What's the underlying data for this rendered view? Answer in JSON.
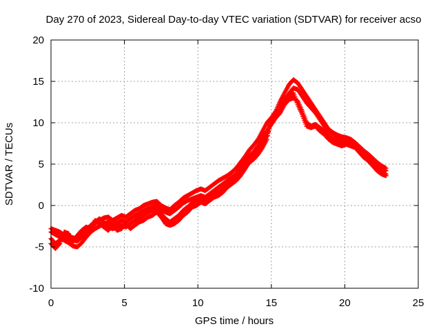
{
  "chart_data": {
    "type": "scatter",
    "title": "Day 270 of 2023, Sidereal Day-to-day VTEC variation (SDTVAR) for receiver acso",
    "xlabel": "GPS time / hours",
    "ylabel": "SDTVAR / TECUs",
    "xlim": [
      0,
      25
    ],
    "ylim": [
      -10,
      20
    ],
    "xticks": [
      0,
      5,
      10,
      15,
      20,
      25
    ],
    "yticks": [
      -10,
      -5,
      0,
      5,
      10,
      15,
      20
    ],
    "grid": true,
    "marker": "plus",
    "series": [
      {
        "name": "SDTVAR",
        "color": "#ff0000",
        "tracks": [
          {
            "x": [
              0,
              0.3,
              0.6,
              0.9,
              1.2,
              1.5,
              1.8,
              2.1,
              2.4,
              2.7,
              3.0,
              3.3,
              3.6,
              3.9,
              4.2,
              4.5,
              4.8,
              5.1,
              5.4,
              5.7,
              6.0,
              6.3,
              6.6,
              6.9,
              7.2,
              7.5,
              7.8,
              8.1,
              8.4,
              8.7,
              9.0,
              9.3,
              9.6,
              9.9,
              10.2,
              10.5,
              10.8,
              11.1,
              11.4,
              11.7,
              12.0,
              12.3,
              12.6,
              12.9,
              13.2,
              13.5,
              13.8,
              14.1,
              14.4,
              14.7,
              15.0,
              15.3,
              15.6,
              15.9,
              16.2,
              16.5,
              16.8,
              17.1,
              17.4,
              17.7,
              18.0,
              18.3,
              18.6,
              18.9,
              19.2,
              19.5,
              19.8,
              20.1,
              20.4,
              20.7,
              21.0,
              21.3,
              21.6,
              21.9,
              22.2,
              22.5,
              22.8
            ],
            "y": [
              -3.2,
              -3.5,
              -3.8,
              -4.2,
              -4.5,
              -4.9,
              -5.0,
              -4.5,
              -3.8,
              -3.2,
              -2.8,
              -2.5,
              -2.2,
              -2.0,
              -2.3,
              -2.1,
              -1.8,
              -2.0,
              -1.6,
              -1.2,
              -1.0,
              -0.6,
              -0.4,
              -0.2,
              0.0,
              -0.5,
              -0.8,
              -1.0,
              -0.6,
              -0.2,
              0.3,
              0.6,
              0.8,
              1.0,
              1.2,
              1.0,
              1.4,
              1.8,
              2.2,
              2.6,
              3.0,
              3.4,
              3.8,
              4.5,
              5.2,
              6.0,
              6.5,
              7.2,
              8.2,
              9.0,
              9.8,
              10.6,
              11.8,
              12.8,
              13.5,
              14.2,
              14.0,
              13.2,
              12.4,
              11.8,
              11.2,
              10.4,
              9.6,
              9.0,
              8.6,
              8.3,
              8.1,
              8.0,
              7.8,
              7.3,
              6.8,
              6.4,
              6.0,
              5.5,
              5.0,
              4.6,
              4.2
            ]
          },
          {
            "x": [
              0,
              0.3,
              0.6,
              0.9,
              1.2,
              1.5,
              1.8,
              2.1,
              2.4,
              2.7,
              3.0,
              3.3,
              3.6,
              3.9,
              4.2,
              4.5,
              4.8,
              5.1,
              5.4,
              5.7,
              6.0,
              6.3,
              6.6,
              6.9,
              7.2,
              7.5,
              7.8,
              8.1,
              8.4,
              8.7,
              9.0,
              9.3,
              9.6,
              9.9,
              10.2,
              10.5,
              10.8,
              11.1,
              11.4,
              11.7,
              12.0,
              12.3,
              12.6,
              12.9,
              13.2,
              13.5,
              13.8,
              14.1,
              14.4,
              14.7,
              15.0,
              15.3,
              15.6,
              15.9,
              16.2,
              16.5,
              16.8,
              17.1,
              17.4,
              17.7,
              18.0,
              18.3,
              18.6,
              18.9,
              19.2,
              19.5,
              19.8,
              20.1,
              20.4,
              20.7,
              21.0,
              21.3,
              21.6,
              21.9,
              22.2,
              22.5,
              22.8
            ],
            "y": [
              -2.8,
              -3.0,
              -3.2,
              -3.6,
              -4.0,
              -4.2,
              -4.3,
              -3.8,
              -3.2,
              -2.6,
              -2.2,
              -1.8,
              -1.5,
              -1.4,
              -1.8,
              -1.5,
              -1.2,
              -1.4,
              -1.0,
              -0.6,
              -0.4,
              0.0,
              0.2,
              0.4,
              0.5,
              0.0,
              -0.3,
              -0.5,
              0.0,
              0.4,
              0.9,
              1.2,
              1.5,
              1.8,
              2.0,
              1.8,
              2.2,
              2.6,
              3.0,
              3.3,
              3.6,
              4.0,
              4.5,
              5.2,
              5.9,
              6.7,
              7.3,
              8.0,
              9.0,
              10.0,
              10.6,
              11.4,
              12.6,
              13.6,
              14.6,
              15.2,
              14.8,
              14.0,
              13.2,
              12.4,
              11.6,
              10.8,
              10.0,
              9.2,
              8.8,
              8.5,
              8.3,
              8.2,
              8.0,
              7.6,
              7.1,
              6.6,
              6.2,
              5.7,
              5.2,
              4.8,
              4.5
            ]
          },
          {
            "x": [
              0,
              0.3,
              0.6,
              0.9,
              1.2,
              1.5,
              1.8,
              2.1,
              2.4,
              2.7,
              3.0,
              3.3,
              3.6,
              3.9,
              4.2,
              4.5,
              4.8,
              5.1,
              5.4,
              5.7,
              6.0,
              6.3,
              6.6,
              6.9,
              7.2,
              7.5,
              7.8,
              8.1,
              8.4,
              8.7,
              9.0,
              9.3,
              9.6,
              9.9,
              10.2,
              10.5,
              10.8,
              11.1,
              11.4,
              11.7,
              12.0,
              12.3,
              12.6,
              12.9,
              13.2,
              13.5,
              13.8,
              14.1,
              14.4,
              14.7,
              15.0,
              15.3,
              15.6,
              15.9,
              16.2,
              16.5,
              16.8,
              17.1,
              17.4,
              17.7,
              18.0,
              18.3,
              18.6,
              18.9,
              19.2,
              19.5,
              19.8,
              20.1,
              20.4,
              20.7,
              21.0,
              21.3,
              21.6,
              21.9,
              22.2,
              22.5,
              22.8
            ],
            "y": [
              -4.0,
              -4.6,
              -4.2,
              -3.6,
              -3.8,
              -3.9,
              -4.0,
              -3.3,
              -3.0,
              -2.4,
              -2.0,
              -1.6,
              -2.0,
              -2.6,
              -2.8,
              -2.6,
              -2.4,
              -2.6,
              -2.2,
              -1.8,
              -1.5,
              -1.2,
              -0.8,
              -0.6,
              -0.4,
              -1.0,
              -1.6,
              -2.0,
              -1.6,
              -1.2,
              -0.6,
              -0.2,
              0.3,
              0.6,
              0.9,
              0.6,
              1.0,
              1.4,
              1.6,
              2.0,
              2.6,
              3.0,
              3.3,
              4.0,
              4.8,
              5.6,
              6.0,
              6.6,
              7.6,
              8.4,
              10.2,
              10.6,
              11.2,
              12.2,
              12.8,
              13.0,
              12.6,
              11.4,
              10.0,
              9.6,
              9.8,
              9.4,
              9.0,
              8.4,
              8.0,
              7.8,
              7.6,
              7.8,
              7.6,
              7.2,
              6.8,
              6.2,
              5.8,
              5.2,
              4.6,
              4.0,
              3.8
            ]
          },
          {
            "x": [
              0,
              0.3,
              0.6,
              0.9,
              1.2,
              1.5,
              1.8,
              2.1,
              2.4,
              2.7,
              3.0,
              3.3,
              3.6,
              3.9,
              4.2,
              4.5,
              4.8,
              5.1,
              5.4,
              5.7,
              6.0,
              6.3,
              6.6,
              6.9,
              7.2,
              7.5,
              7.8,
              8.1,
              8.4,
              8.7,
              9.0,
              9.3,
              9.6,
              9.9,
              10.2,
              10.5,
              10.8,
              11.1,
              11.4,
              11.7,
              12.0,
              12.3,
              12.6,
              12.9,
              13.2,
              13.5,
              13.8,
              14.1,
              14.4,
              14.7,
              15.0,
              15.3,
              15.6,
              15.9,
              16.2,
              16.5,
              16.8,
              17.1,
              17.4,
              17.7,
              18.0,
              18.3,
              18.6,
              18.9,
              19.2,
              19.5,
              19.8,
              20.1,
              20.4,
              20.7,
              21.0,
              21.3,
              21.6,
              21.9,
              22.2,
              22.5,
              22.8
            ],
            "y": [
              -4.6,
              -5.2,
              -4.6,
              -3.2,
              -3.4,
              -4.4,
              -3.6,
              -3.0,
              -2.6,
              -2.8,
              -1.8,
              -2.2,
              -2.6,
              -3.0,
              -2.4,
              -3.0,
              -2.8,
              -2.2,
              -2.8,
              -2.4,
              -2.0,
              -1.8,
              -1.4,
              -1.2,
              -0.8,
              -1.4,
              -2.2,
              -2.4,
              -2.2,
              -1.8,
              -1.2,
              -0.8,
              -0.2,
              0.0,
              0.4,
              0.2,
              0.6,
              1.0,
              1.2,
              1.6,
              2.2,
              2.6,
              3.0,
              3.6,
              4.4,
              5.2,
              5.6,
              6.2,
              7.0,
              8.0,
              10.6,
              11.0,
              11.6,
              12.4,
              13.2,
              13.6,
              12.2,
              11.0,
              9.6,
              9.4,
              9.6,
              9.0,
              8.6,
              8.0,
              7.6,
              7.4,
              7.2,
              7.4,
              7.2,
              7.0,
              6.4,
              5.8,
              5.4,
              4.8,
              4.2,
              3.8,
              3.6
            ]
          }
        ]
      }
    ]
  }
}
